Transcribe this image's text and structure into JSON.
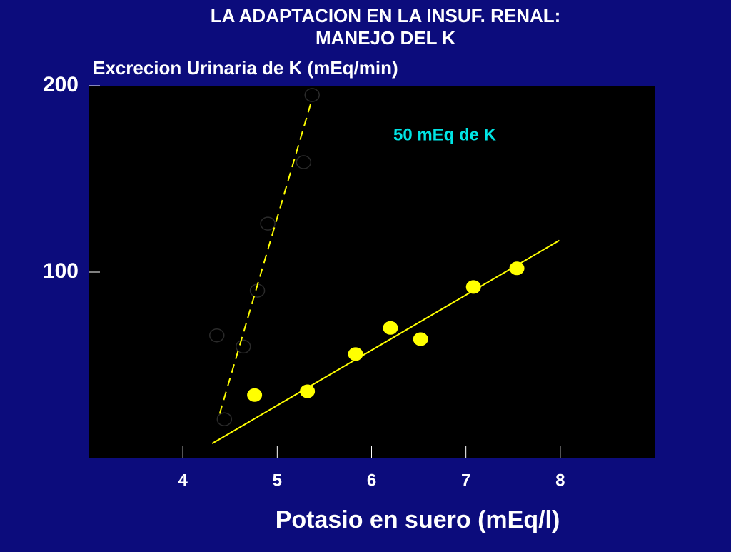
{
  "chart_data": {
    "type": "scatter",
    "title": [
      "LA ADAPTACION EN LA INSUF. RENAL:",
      "MANEJO DEL K"
    ],
    "y_label": "Excrecion Urinaria de K (mEq/min)",
    "x_label": "Potasio en suero (mEq/l)",
    "annotation": "50 mEq de K",
    "annotation_color": "#00e5e5",
    "xlim": [
      3,
      9
    ],
    "xticks": [
      4,
      5,
      6,
      7,
      8
    ],
    "ylim": [
      0,
      200
    ],
    "yticks": [
      100,
      200
    ],
    "series": [
      {
        "type": "scatter",
        "marker": "filled",
        "color": "#ffff00",
        "x": [
          4.76,
          5.32,
          5.83,
          6.2,
          6.52,
          7.08,
          7.54
        ],
        "values": [
          34,
          36,
          56,
          70,
          64,
          92,
          102
        ]
      },
      {
        "type": "line",
        "dash": false,
        "color": "#ffff00",
        "x": [
          4.31,
          7.99
        ],
        "values": [
          8,
          117
        ]
      },
      {
        "type": "scatter",
        "marker": "hollow",
        "color": "#2a2a2a",
        "x": [
          5.37,
          5.28,
          4.9,
          4.79,
          4.36,
          4.64,
          4.44
        ],
        "values": [
          195,
          159,
          126,
          90,
          66,
          60,
          21
        ]
      },
      {
        "type": "line",
        "dash": true,
        "color": "#ffff00",
        "x": [
          4.39,
          5.37
        ],
        "values": [
          24,
          193
        ]
      }
    ]
  }
}
